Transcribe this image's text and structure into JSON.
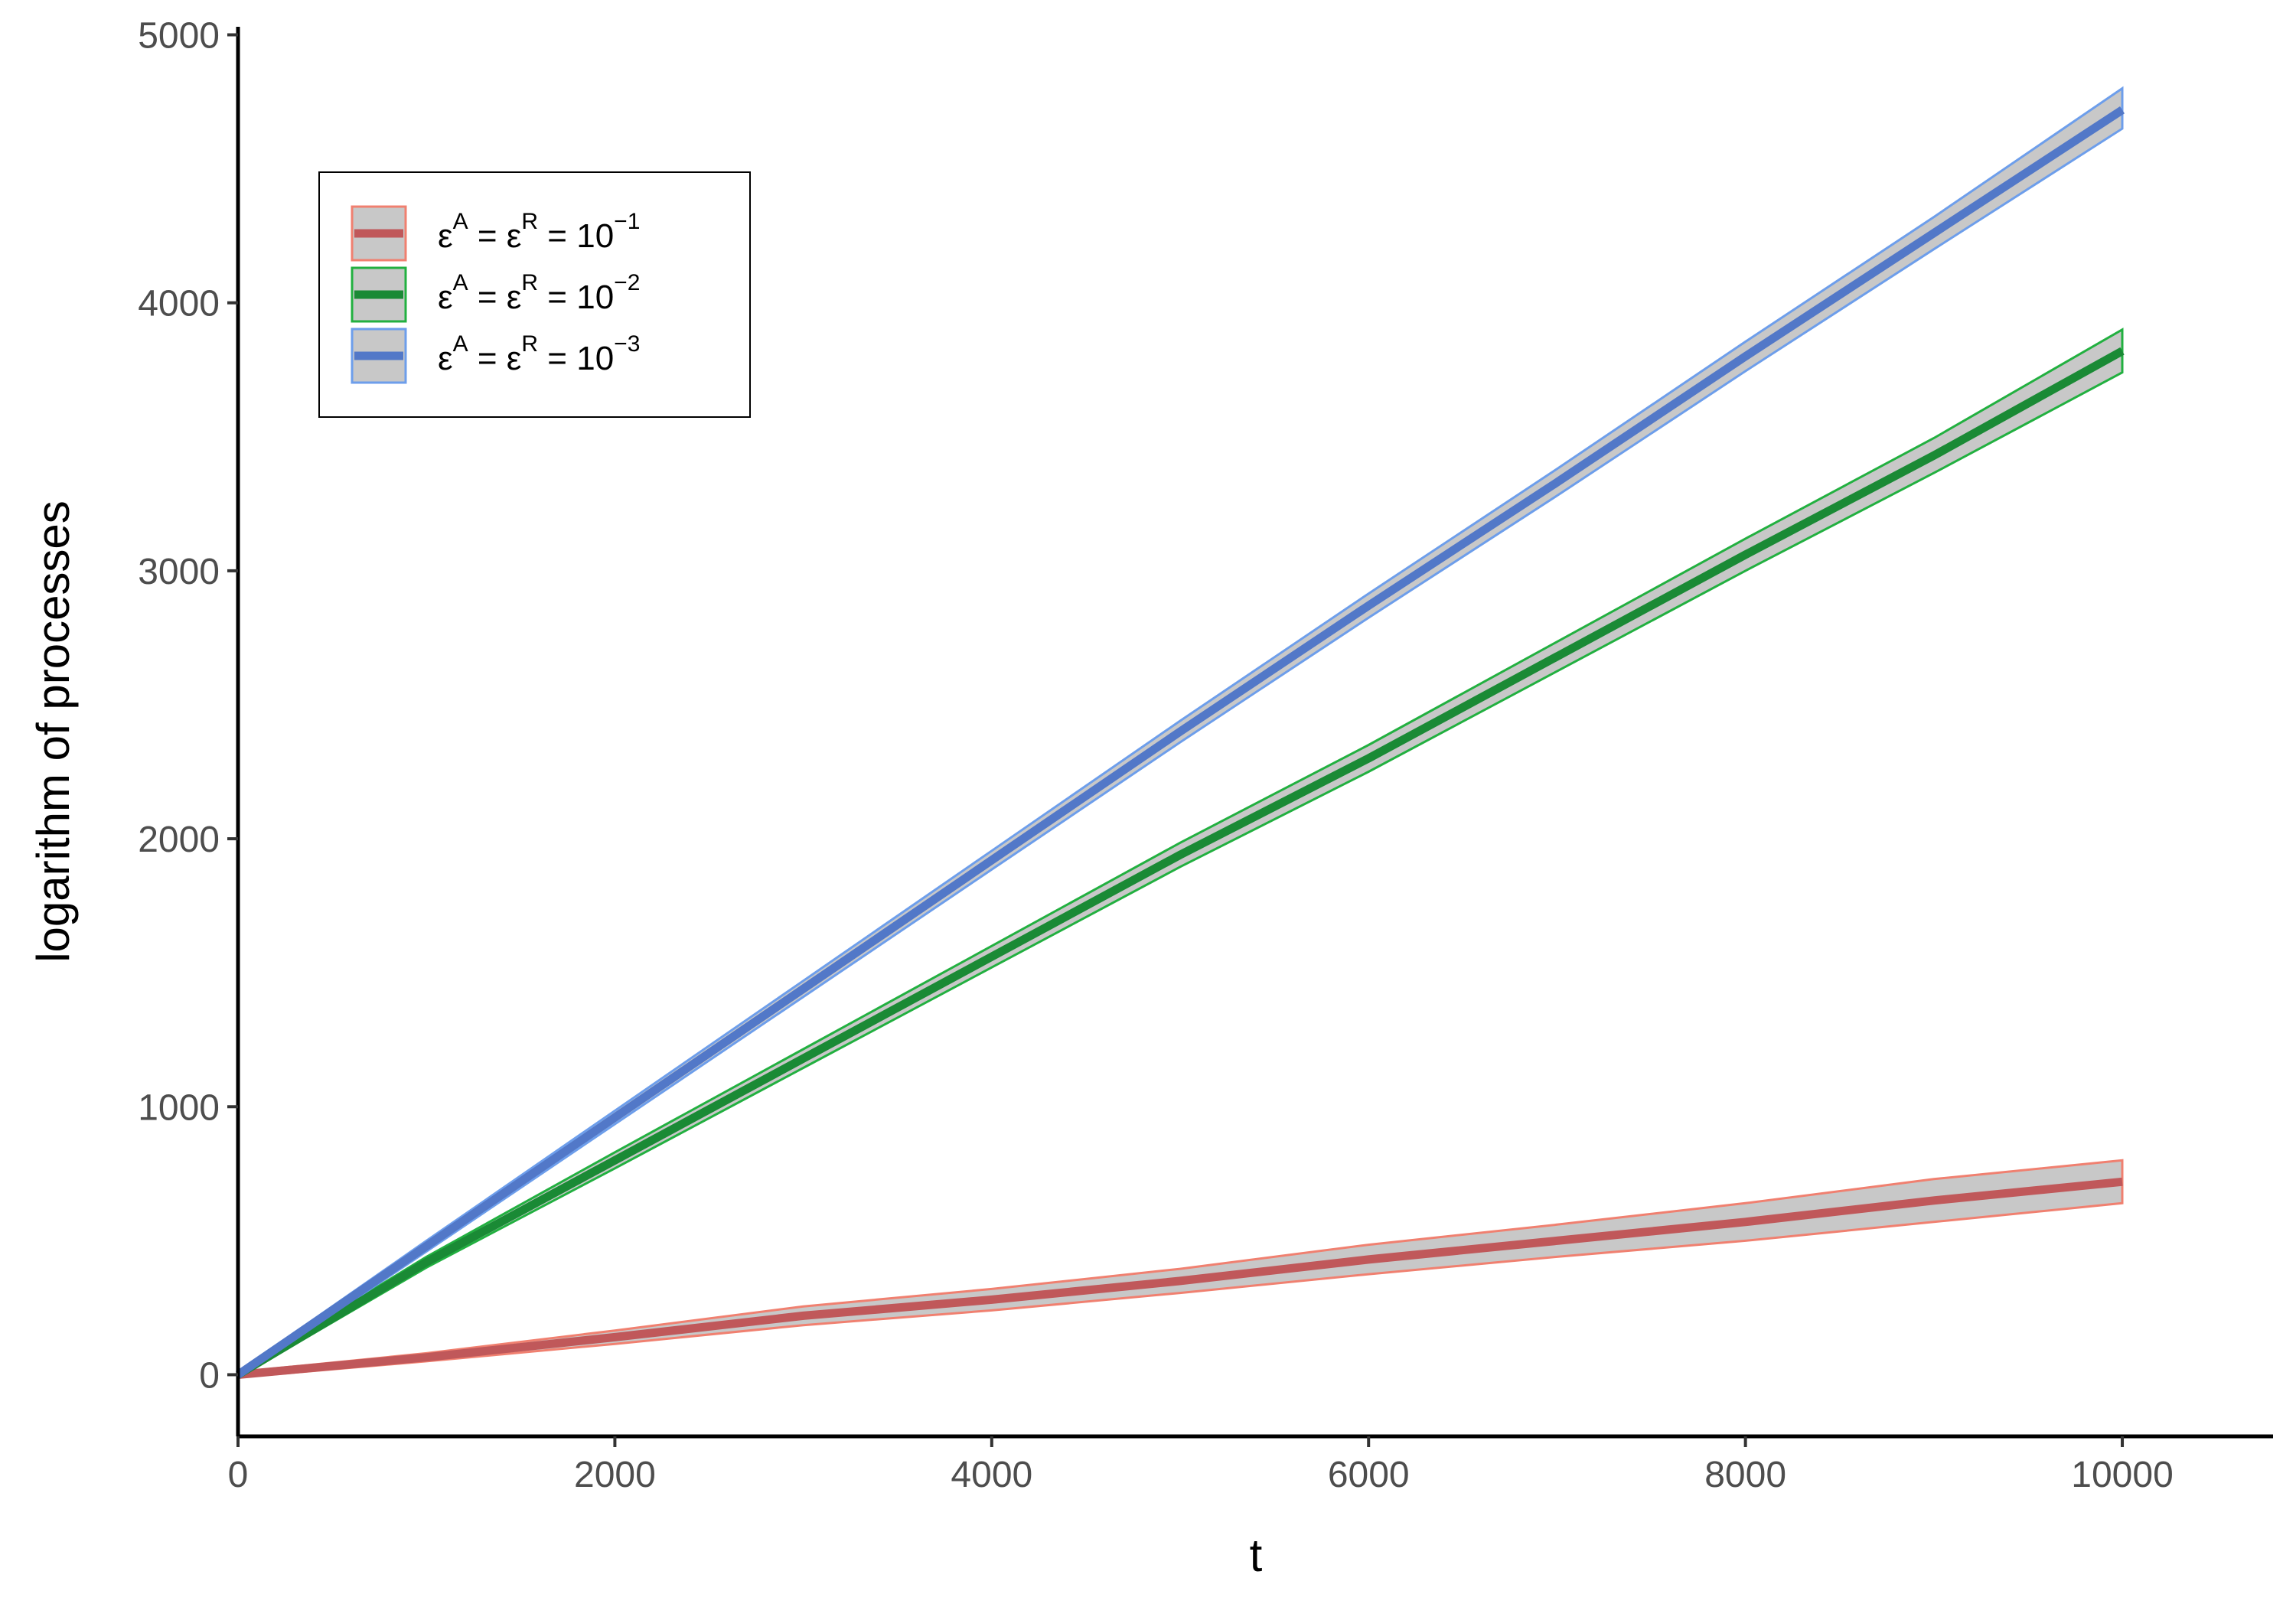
{
  "chart_data": {
    "type": "line",
    "title": "",
    "xlabel": "t",
    "ylabel": "logarithm of processes",
    "xlim": [
      0,
      10800
    ],
    "ylim": [
      -230,
      5030
    ],
    "x_ticks": [
      0,
      2000,
      4000,
      6000,
      8000,
      10000
    ],
    "y_ticks": [
      0,
      1000,
      2000,
      3000,
      4000,
      5000
    ],
    "x_tick_labels": [
      "0",
      "2000",
      "4000",
      "6000",
      "8000",
      "10000"
    ],
    "y_tick_labels": [
      "0",
      "1000",
      "2000",
      "3000",
      "4000",
      "5000"
    ],
    "grid": false,
    "legend_position": "top-left",
    "band_fill_color": "#c8c8c8",
    "x": [
      0,
      1000,
      2000,
      3000,
      4000,
      5000,
      6000,
      7000,
      8000,
      9000,
      10000
    ],
    "series": [
      {
        "legend": {
          "base": "ε",
          "sup1": "A",
          "eq1": " = ε",
          "sup2": "R",
          "eq2": " = 10",
          "sup3": "−1"
        },
        "line_color": "#c0585a",
        "band_color": "#f08070",
        "values": [
          0,
          65,
          140,
          220,
          280,
          350,
          430,
          500,
          570,
          650,
          720
        ],
        "lower": [
          -10,
          50,
          115,
          185,
          240,
          305,
          375,
          440,
          500,
          570,
          640
        ],
        "upper": [
          10,
          80,
          165,
          255,
          320,
          395,
          485,
          560,
          640,
          730,
          800
        ]
      },
      {
        "legend": {
          "base": "ε",
          "sup1": "A",
          "eq1": " = ε",
          "sup2": "R",
          "eq2": " = 10",
          "sup3": "−2"
        },
        "line_color": "#1a8a35",
        "band_color": "#22b040",
        "values": [
          0,
          420,
          800,
          1180,
          1560,
          1940,
          2300,
          2680,
          3060,
          3430,
          3820
        ],
        "lower": [
          -10,
          400,
          770,
          1145,
          1520,
          1895,
          2250,
          2625,
          3000,
          3365,
          3740
        ],
        "upper": [
          10,
          440,
          830,
          1215,
          1600,
          1985,
          2350,
          2735,
          3120,
          3495,
          3900
        ]
      },
      {
        "legend": {
          "base": "ε",
          "sup1": "A",
          "eq1": " = ε",
          "sup2": "R",
          "eq2": " = 10",
          "sup3": "−3"
        },
        "line_color": "#5278c8",
        "band_color": "#6d9eeb",
        "values": [
          0,
          480,
          960,
          1440,
          1920,
          2400,
          2870,
          3330,
          3800,
          4260,
          4720
        ],
        "lower": [
          -10,
          460,
          935,
          1410,
          1885,
          2360,
          2825,
          3280,
          3745,
          4200,
          4650
        ],
        "upper": [
          10,
          500,
          985,
          1470,
          1955,
          2440,
          2915,
          3380,
          3855,
          4320,
          4800
        ]
      }
    ]
  }
}
